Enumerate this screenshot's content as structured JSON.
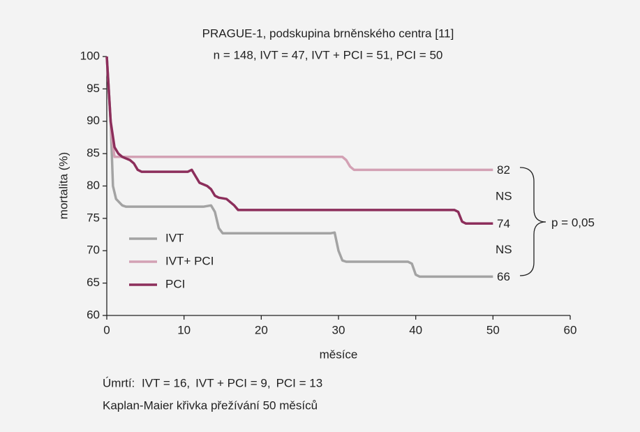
{
  "chart_data": {
    "type": "line",
    "title": "PRAGUE-1, podskupina brněnského centra [11]",
    "subtitle": "n = 148, IVT = 47, IVT + PCI = 51, PCI = 50",
    "x_label": "měsíce",
    "y_label": "mortalita (%)",
    "xlim": [
      0,
      60
    ],
    "xticks": [
      0,
      10,
      20,
      30,
      40,
      50,
      60
    ],
    "ylim": [
      60,
      100
    ],
    "yticks": [
      60,
      65,
      70,
      75,
      80,
      85,
      90,
      95,
      100
    ],
    "grid": false,
    "legend": "lower left",
    "series": [
      {
        "name": "IVT",
        "color": "#a3a3a3",
        "end_label": 66,
        "x": [
          0,
          0.5,
          0.8,
          1.2,
          2,
          2.5,
          12.5,
          13.5,
          14,
          14.5,
          15,
          29,
          29.5,
          30,
          30.5,
          31,
          39,
          39.5,
          40,
          40.5,
          50
        ],
        "values": [
          100,
          90,
          80,
          78,
          77,
          76.8,
          76.8,
          77,
          76,
          73.5,
          72.7,
          72.7,
          72.8,
          70,
          68.5,
          68.3,
          68.3,
          68,
          66.3,
          66,
          66
        ]
      },
      {
        "name": "IVT+ PCI",
        "color": "#d3a1b4",
        "end_label": 82,
        "x": [
          0,
          0.6,
          1,
          30.5,
          31,
          31.5,
          32,
          50
        ],
        "values": [
          100,
          88,
          84.5,
          84.5,
          84,
          83,
          82.5,
          82.5
        ]
      },
      {
        "name": "PCI",
        "color": "#8c2e5b",
        "end_label": 74,
        "x": [
          0,
          0.5,
          1,
          1.5,
          2,
          3,
          3.5,
          4,
          4.5,
          10.5,
          11,
          11.5,
          12,
          13,
          13.5,
          14,
          14.5,
          15.5,
          16.5,
          17,
          45,
          45.5,
          46,
          46.5,
          50
        ],
        "values": [
          100,
          90,
          86,
          85,
          84.5,
          84,
          83.5,
          82.5,
          82.2,
          82.2,
          82.5,
          81.5,
          80.5,
          80,
          79.5,
          78.5,
          78.2,
          78,
          77,
          76.3,
          76.3,
          76,
          74.5,
          74.2,
          74.2
        ]
      }
    ],
    "comparisons": [
      "NS",
      "NS"
    ],
    "p_value": "p = 0,05",
    "deaths": {
      "label": "Úmrtí:",
      "items": [
        "IVT = 16,",
        "IVT + PCI = 9,",
        "PCI = 13"
      ]
    },
    "caption": "Kaplan-Maier křivka přežívání 50 měsíců"
  }
}
